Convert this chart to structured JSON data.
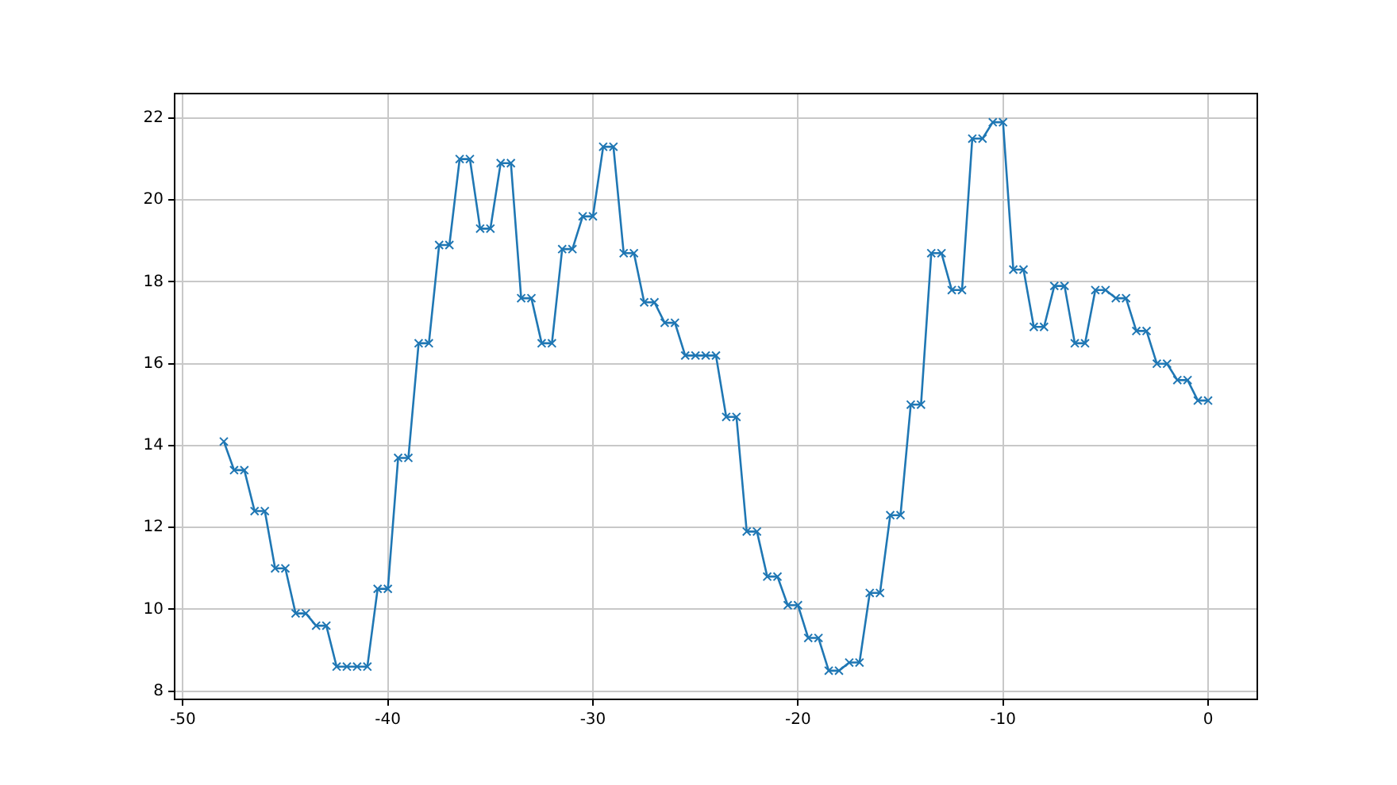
{
  "chart_data": {
    "type": "line",
    "xlim": [
      -50.4,
      2.4
    ],
    "ylim": [
      7.8,
      22.6
    ],
    "xticks": [
      -50,
      -40,
      -30,
      -20,
      -10,
      0
    ],
    "yticks": [
      8,
      10,
      12,
      14,
      16,
      18,
      20,
      22
    ],
    "grid": true,
    "marker": "cross",
    "line_style": "solid",
    "x": [
      -48,
      -47.5,
      -47,
      -46.5,
      -46,
      -45.5,
      -45,
      -44.5,
      -44,
      -43.5,
      -43,
      -42.5,
      -42,
      -41.5,
      -41,
      -40.5,
      -40,
      -39.5,
      -39,
      -38.5,
      -38,
      -37.5,
      -37,
      -36.5,
      -36,
      -35.5,
      -35,
      -34.5,
      -34,
      -33.5,
      -33,
      -32.5,
      -32,
      -31.5,
      -31,
      -30.5,
      -30,
      -29.5,
      -29,
      -28.5,
      -28,
      -27.5,
      -27,
      -26.5,
      -26,
      -25.5,
      -25,
      -24.5,
      -24,
      -23.5,
      -23,
      -22.5,
      -22,
      -21.5,
      -21,
      -20.5,
      -20,
      -19.5,
      -19,
      -18.5,
      -18,
      -17.5,
      -17,
      -16.5,
      -16,
      -15.5,
      -15,
      -14.5,
      -14,
      -13.5,
      -13,
      -12.5,
      -12,
      -11.5,
      -11,
      -10.5,
      -10,
      -9.5,
      -9,
      -8.5,
      -8,
      -7.5,
      -7,
      -6.5,
      -6,
      -5.5,
      -5,
      -4.5,
      -4,
      -3.5,
      -3,
      -2.5,
      -2,
      -1.5,
      -1,
      -0.5,
      0
    ],
    "series": [
      {
        "color": "#1f77b4",
        "values": [
          14.1,
          13.4,
          13.4,
          12.4,
          12.4,
          11.0,
          11.0,
          9.9,
          9.9,
          9.6,
          9.6,
          8.6,
          8.6,
          8.6,
          8.6,
          10.5,
          10.5,
          13.7,
          13.7,
          16.5,
          16.5,
          18.9,
          18.9,
          21.0,
          21.0,
          19.3,
          19.3,
          20.9,
          20.9,
          17.6,
          17.6,
          16.5,
          16.5,
          18.8,
          18.8,
          19.6,
          19.6,
          21.3,
          21.3,
          18.7,
          18.7,
          17.5,
          17.5,
          17.0,
          17.0,
          16.2,
          16.2,
          16.2,
          16.2,
          14.7,
          14.7,
          11.9,
          11.9,
          10.8,
          10.8,
          10.1,
          10.1,
          9.3,
          9.3,
          8.5,
          8.5,
          8.7,
          8.7,
          10.4,
          10.4,
          12.3,
          12.3,
          15.0,
          15.0,
          18.7,
          18.7,
          17.8,
          17.8,
          21.5,
          21.5,
          21.9,
          21.9,
          18.3,
          18.3,
          16.9,
          16.9,
          17.9,
          17.9,
          16.5,
          16.5,
          17.8,
          17.8,
          17.6,
          17.6,
          16.8,
          16.8,
          16.0,
          16.0,
          15.6,
          15.6,
          15.1,
          15.1
        ]
      }
    ]
  }
}
